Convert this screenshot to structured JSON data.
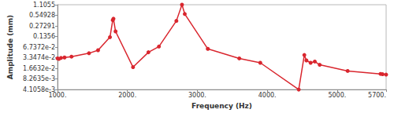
{
  "chart_data": {
    "type": "line",
    "x_label": "Frequency (Hz)",
    "y_label": "Amplitude (mm)",
    "log": "y",
    "grid": false,
    "color": "#d9262e",
    "marker": "circle",
    "x": [
      1000,
      1020,
      1050,
      1100,
      1200,
      1450,
      1580,
      1750,
      1790,
      1800,
      1830,
      2080,
      2300,
      2450,
      2700,
      2780,
      2820,
      3150,
      3600,
      3900,
      4450,
      4530,
      4560,
      4620,
      4680,
      4750,
      5150,
      5620,
      5650,
      5700
    ],
    "values": [
      0.032,
      0.031,
      0.033,
      0.034,
      0.036,
      0.045,
      0.055,
      0.13,
      0.4,
      0.44,
      0.19,
      0.018,
      0.048,
      0.07,
      0.38,
      1.1055,
      0.6,
      0.06,
      0.032,
      0.024,
      0.0041058,
      0.04,
      0.028,
      0.024,
      0.026,
      0.021,
      0.014,
      0.0115,
      0.0113,
      0.011
    ],
    "xlim": [
      1000,
      5700
    ],
    "xticks": [
      {
        "value": 1000,
        "label": "1000."
      },
      {
        "value": 2000,
        "label": "2000."
      },
      {
        "value": 3000,
        "label": "3000."
      },
      {
        "value": 4000,
        "label": "4000."
      },
      {
        "value": 5000,
        "label": "5000."
      },
      {
        "value": 5700,
        "label": "5700."
      }
    ],
    "ylim": [
      0.0041058,
      1.1055
    ],
    "yticks": [
      {
        "value": 0.0041058,
        "label": "4.1058e-3"
      },
      {
        "value": 0.0082635,
        "label": "8.2635e-3"
      },
      {
        "value": 0.016632,
        "label": "1.6632e-2"
      },
      {
        "value": 0.033474,
        "label": "3.3474e-2"
      },
      {
        "value": 0.067372,
        "label": "6.7372e-2"
      },
      0.1356,
      0.27291,
      0.54928,
      1.1055
    ]
  }
}
